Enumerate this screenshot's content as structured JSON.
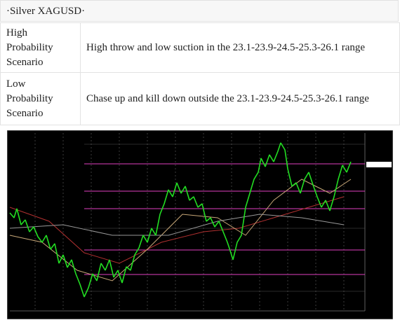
{
  "title": "·Silver XAGUSD·",
  "table": {
    "rows": [
      [
        "High Probability Scenario",
        "High throw and low suction in the 23.1-23.9-24.5-25.3-26.1 range"
      ],
      [
        "Low Probability Scenario",
        "Chase up and kill down outside the 23.1-23.9-24.5-25.3-26.1 range"
      ]
    ]
  }
}
